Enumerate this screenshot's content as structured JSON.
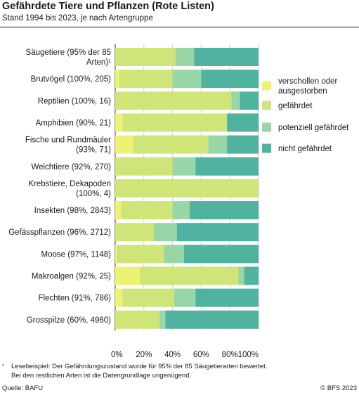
{
  "chart_data": {
    "type": "bar",
    "orientation": "horizontal",
    "stacked": true,
    "title": "Gefährdete Tiere und Pflanzen (Rote Listen)",
    "subtitle": "Stand 1994 bis 2023, je nach Artengruppe",
    "categories": [
      [
        "Säugetiere (95% der 85",
        "Arten)¹"
      ],
      [
        "Brutvögel (100%, 205)"
      ],
      [
        "Reptilien (100%, 16)"
      ],
      [
        "Amphibien (90%, 21)"
      ],
      [
        "Fische und Rundmäuler",
        "(93%, 71)"
      ],
      [
        "Weichtiere (92%, 270)"
      ],
      [
        "Krebstiere, Dekapoden",
        "(100%, 4)"
      ],
      [
        "Insekten (98%, 2843)"
      ],
      [
        "Gefässpflanzen (96%, 2712)"
      ],
      [
        "Moose (97%, 1148)"
      ],
      [
        "Makroalgen (92%, 25)"
      ],
      [
        "Flechten (91%, 786)"
      ],
      [
        "Grosspilze (60%, 4960)"
      ]
    ],
    "series": [
      {
        "name": "verschollen oder ausgestorben",
        "name_lines": [
          "verschollen oder",
          "ausgestorben"
        ],
        "color": "#eef272",
        "values": [
          0,
          3,
          0,
          5,
          13,
          0,
          0,
          4,
          0,
          1,
          17,
          5,
          0
        ]
      },
      {
        "name": "gefährdet",
        "name_lines": [
          "gefährdet"
        ],
        "color": "#d0e577",
        "values": [
          42,
          37,
          81,
          73,
          52,
          40,
          100,
          36,
          27,
          33,
          69,
          36,
          31
        ]
      },
      {
        "name": "potenziell gefährdet",
        "name_lines": [
          "potenziell gefährdet"
        ],
        "color": "#99d6a7",
        "values": [
          13,
          20,
          6,
          0,
          13,
          16,
          0,
          12,
          16,
          14,
          4,
          15,
          4
        ]
      },
      {
        "name": "nicht gefährdet",
        "name_lines": [
          "nicht gefährdet"
        ],
        "color": "#4fb3a0",
        "values": [
          45,
          40,
          13,
          22,
          22,
          44,
          0,
          48,
          57,
          52,
          10,
          44,
          65
        ]
      }
    ],
    "xlim": [
      0,
      100
    ],
    "xticks": [
      0,
      20,
      40,
      60,
      80,
      100
    ],
    "tick_labels": [
      "0%",
      "20%",
      "40%",
      "60%",
      "80%",
      "100%"
    ],
    "grid": true,
    "legend": "right"
  },
  "footnote": {
    "mark": "¹",
    "line1": "Lesebeispiel: Der Gefährdungszustand wurde für 95% der 85 Säugetierarten bewertet.",
    "line2": "Bei den restlichen Arten ist die Datengrundlage ungenügend."
  },
  "source": "Quelle: BAFU",
  "copyright": "© BFS 2023"
}
